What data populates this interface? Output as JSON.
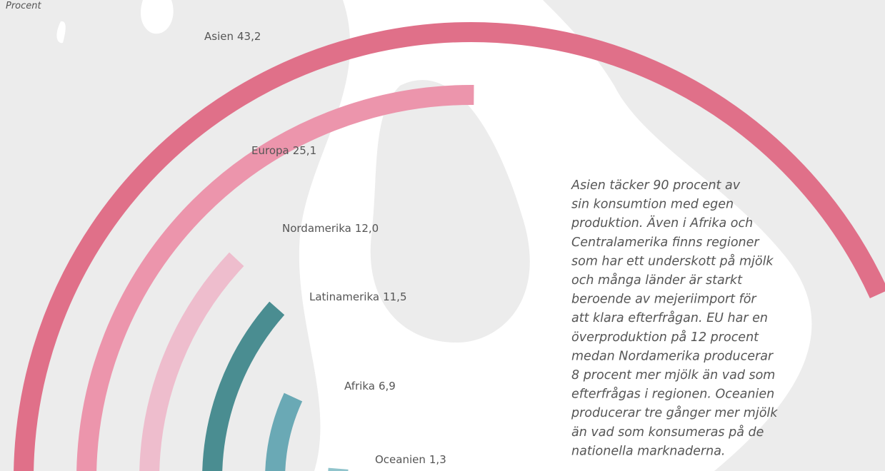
{
  "chart_data": {
    "type": "radial-bar",
    "subtitle": "Procent",
    "categories": [
      "Asien",
      "Europa",
      "Nordamerika",
      "Latinamerika",
      "Afrika",
      "Oceanien"
    ],
    "values": [
      43.2,
      25.1,
      12.0,
      11.5,
      6.9,
      1.3
    ],
    "value_labels": [
      "43,2",
      "25,1",
      "12,0",
      "11,5",
      "6,9",
      "1,3"
    ],
    "colors": [
      "#e07089",
      "#ec95ac",
      "#eebdcd",
      "#4a8d91",
      "#6aa9b5",
      "#90c4cc"
    ],
    "annotation": [
      "Asien täcker 90 procent av",
      "sin konsumtion med egen",
      "produktion. Även i Afrika och",
      "Centralamerika finns regioner",
      "som har ett underskott på mjölk",
      "och många länder är starkt",
      "beroende av mejeriimport för",
      "att klara efterfrågan. EU har en",
      "överproduktion på 12 procent",
      "medan Nordamerika producerar",
      "8 procent mer mjölk än vad som",
      "efterfrågas i regionen. Oceanien",
      "producerar tre gånger mer mjölk",
      "än vad som konsumeras på de",
      "nationella marknaderna."
    ]
  }
}
